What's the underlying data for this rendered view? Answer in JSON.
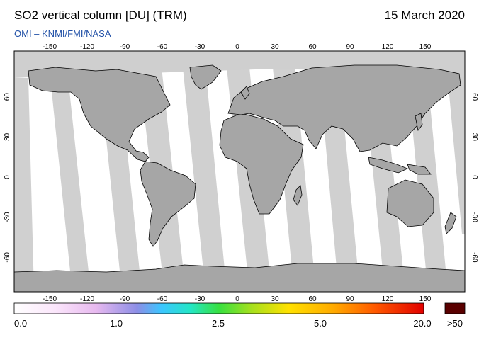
{
  "header": {
    "title": "SO2 vertical column [DU] (TRM)",
    "date": "15 March 2020",
    "credit": "OMI  –  KNMI/FMI/NASA"
  },
  "axes": {
    "lon_ticks": [
      "-150",
      "-120",
      "-90",
      "-60",
      "-30",
      "0",
      "30",
      "60",
      "90",
      "120",
      "150"
    ],
    "lat_ticks": [
      "60",
      "30",
      "0",
      "-30",
      "-60"
    ]
  },
  "colorbar": {
    "labels": [
      "0.0",
      "1.0",
      "2.5",
      "5.0",
      "20.0"
    ],
    "overflow_label": ">50",
    "overflow_color": "#5a0000"
  },
  "colors": {
    "land": "#a6a6a6",
    "no_data_swath": "#d0d0d0",
    "valid_data": "#ffffff",
    "polar_no_data": "#cfcfcf"
  }
}
